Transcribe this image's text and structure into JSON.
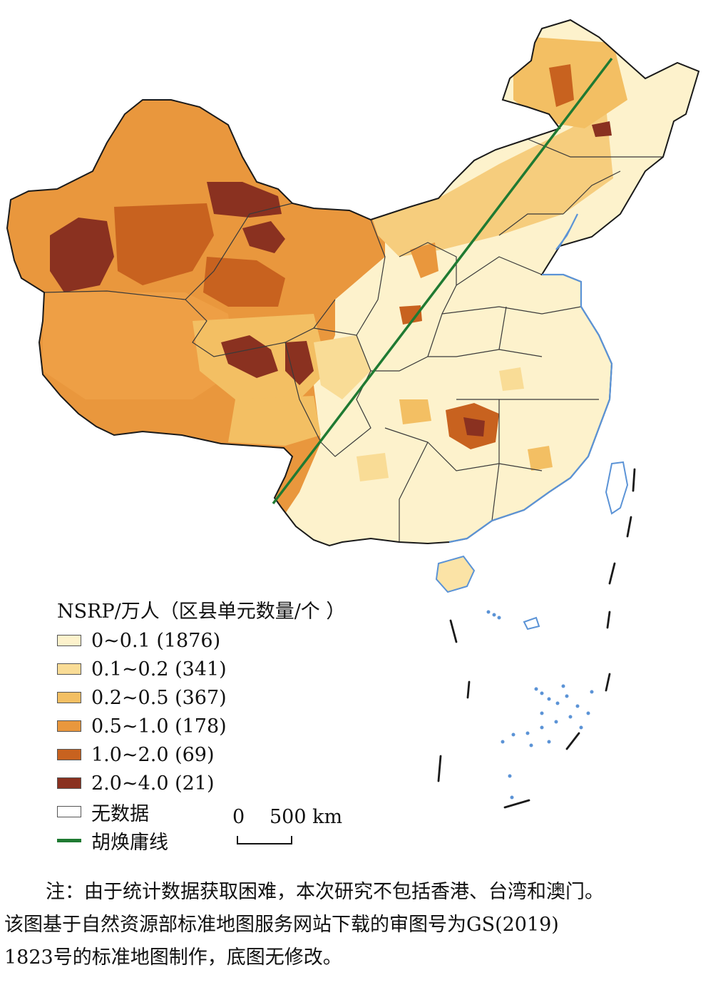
{
  "legend": {
    "title": "NSRP/万人（区县单元数量/个 ）",
    "classes": [
      {
        "label": "0~0.1 (1876)",
        "color": "#fdf2cc"
      },
      {
        "label": "0.1~0.2 (341)",
        "color": "#f9dc96"
      },
      {
        "label": "0.2~0.5 (367)",
        "color": "#f3bf63"
      },
      {
        "label": "0.5~1.0 (178)",
        "color": "#e9973d"
      },
      {
        "label": "1.0~2.0 (69)",
        "color": "#c8621f"
      },
      {
        "label": "2.0~4.0 (21)",
        "color": "#8a3120"
      }
    ],
    "no_data": {
      "label": "无数据",
      "color": "#ffffff"
    },
    "line": {
      "label": "胡焕庸线",
      "color": "#1f7a32"
    }
  },
  "scale": {
    "zero": "0",
    "distance": "500 km"
  },
  "note": {
    "line1": "注：由于统计数据获取困难，本次研究不包括香港、台湾和澳门。",
    "line2": "该图基于自然资源部标准地图服务网站下载的审图号为GS(2019)",
    "line3": "1823号的标准地图制作，底图无修改。"
  },
  "colors": {
    "outline": "#1a1a1a",
    "water": "#5b93d6",
    "province_border": "#3a3a3a"
  }
}
